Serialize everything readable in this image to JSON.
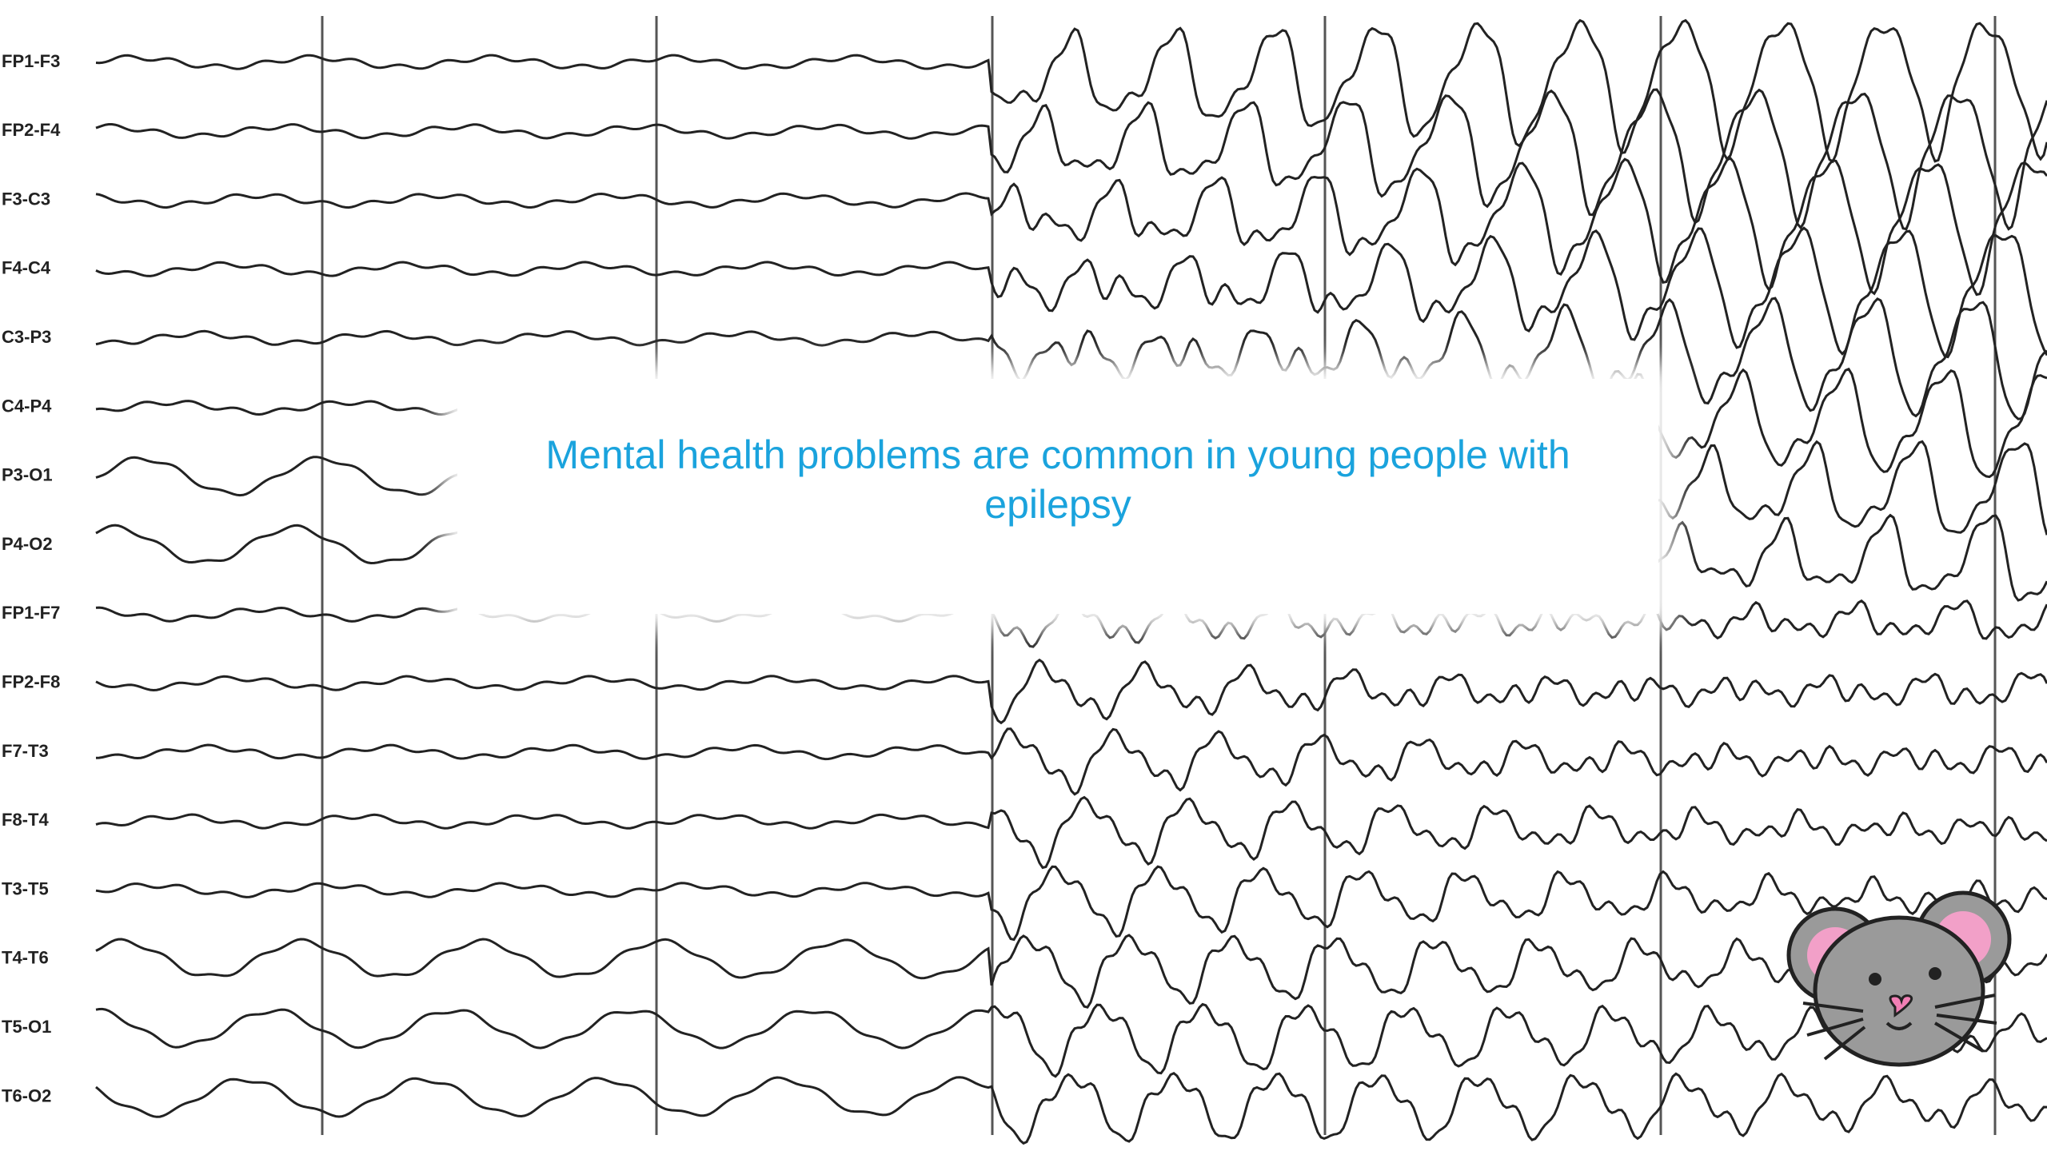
{
  "eeg": {
    "channels": [
      "FP1-F3",
      "FP2-F4",
      "F3-C3",
      "F4-C4",
      "C3-P3",
      "C4-P4",
      "P3-O1",
      "P4-O2",
      "FP1-F7",
      "FP2-F8",
      "F7-T3",
      "F8-T4",
      "T3-T5",
      "T4-T6",
      "T5-O1",
      "T6-O2"
    ]
  },
  "callout": {
    "text": "Mental health problems are common in young people with epilepsy"
  }
}
